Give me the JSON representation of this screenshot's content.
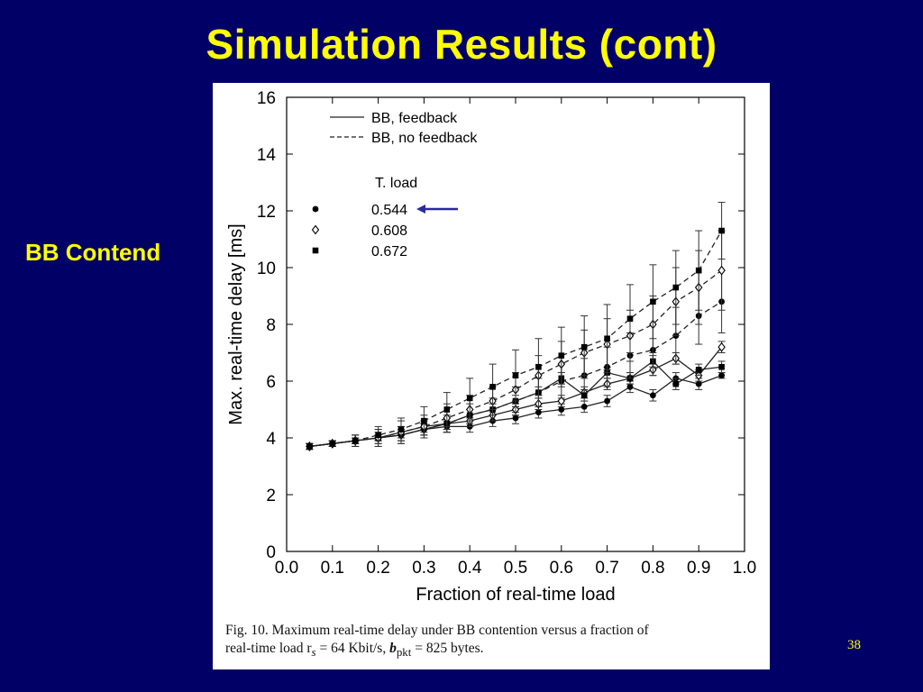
{
  "slide": {
    "title": "Simulation Results (cont)",
    "side_label": "BB Contend",
    "page_number": "38"
  },
  "caption": {
    "line1": "Fig. 10.    Maximum real-time delay under BB contention versus a fraction of",
    "line2": "real-time  load  r",
    "line2_sub": "s",
    "line2_rest": " = 64  Kbit/s, ",
    "line2_b": "b",
    "line2_b_sub": "pkt",
    "line2_end": " = 825  bytes."
  },
  "colors": {
    "background": "#000066",
    "title": "#ffff00",
    "arrow": "#2a2aa0"
  },
  "chart_data": {
    "type": "line",
    "xlabel": "Fraction of real-time load",
    "ylabel": "Max. real-time delay [ms]",
    "xlim": [
      0.0,
      1.0
    ],
    "ylim": [
      0,
      16
    ],
    "x_ticks": [
      "0.0",
      "0.1",
      "0.2",
      "0.3",
      "0.4",
      "0.5",
      "0.6",
      "0.7",
      "0.8",
      "0.9",
      "1.0"
    ],
    "y_ticks": [
      "0",
      "2",
      "4",
      "6",
      "8",
      "10",
      "12",
      "14",
      "16"
    ],
    "grid": false,
    "legend": {
      "position": "top-left",
      "styles": [
        {
          "label": "BB, feedback",
          "linestyle": "solid"
        },
        {
          "label": "BB, no feedback",
          "linestyle": "dashed"
        }
      ],
      "load_title": "T. load",
      "markers": [
        {
          "label": "0.544",
          "marker": "circle"
        },
        {
          "label": "0.608",
          "marker": "diamond"
        },
        {
          "label": "0.672",
          "marker": "square"
        }
      ],
      "highlighted": "0.544"
    },
    "series": [
      {
        "load": "0.544",
        "marker": "circle",
        "linestyle": "solid",
        "x": [
          0.05,
          0.1,
          0.15,
          0.2,
          0.25,
          0.3,
          0.35,
          0.4,
          0.45,
          0.5,
          0.55,
          0.6,
          0.65,
          0.7,
          0.75,
          0.8,
          0.85,
          0.9,
          0.95
        ],
        "y": [
          3.7,
          3.8,
          3.9,
          4.0,
          4.1,
          4.3,
          4.4,
          4.4,
          4.6,
          4.7,
          4.9,
          5.0,
          5.1,
          5.3,
          5.8,
          5.5,
          6.1,
          5.9,
          6.2
        ],
        "err": [
          0.1,
          0.1,
          0.1,
          0.1,
          0.2,
          0.2,
          0.2,
          0.2,
          0.2,
          0.2,
          0.2,
          0.2,
          0.2,
          0.2,
          0.2,
          0.2,
          0.2,
          0.2,
          0.1
        ]
      },
      {
        "load": "0.608",
        "marker": "diamond",
        "linestyle": "solid",
        "x": [
          0.05,
          0.1,
          0.15,
          0.2,
          0.25,
          0.3,
          0.35,
          0.4,
          0.45,
          0.5,
          0.55,
          0.6,
          0.65,
          0.7,
          0.75,
          0.8,
          0.85,
          0.9,
          0.95
        ],
        "y": [
          3.7,
          3.8,
          3.9,
          4.0,
          4.1,
          4.3,
          4.5,
          4.6,
          4.8,
          5.0,
          5.2,
          5.3,
          5.6,
          5.9,
          6.1,
          6.4,
          6.8,
          6.2,
          7.2
        ],
        "err": [
          0.1,
          0.1,
          0.1,
          0.1,
          0.2,
          0.2,
          0.2,
          0.2,
          0.2,
          0.2,
          0.2,
          0.2,
          0.2,
          0.2,
          0.2,
          0.2,
          0.2,
          0.2,
          0.2
        ]
      },
      {
        "load": "0.672",
        "marker": "square",
        "linestyle": "solid",
        "x": [
          0.05,
          0.1,
          0.15,
          0.2,
          0.25,
          0.3,
          0.35,
          0.4,
          0.45,
          0.5,
          0.55,
          0.6,
          0.65,
          0.7,
          0.75,
          0.8,
          0.85,
          0.9,
          0.95
        ],
        "y": [
          3.7,
          3.8,
          3.9,
          4.0,
          4.2,
          4.4,
          4.5,
          4.8,
          5.0,
          5.3,
          5.6,
          6.1,
          5.5,
          6.3,
          6.1,
          6.7,
          5.9,
          6.4,
          6.5
        ],
        "err": [
          0.1,
          0.1,
          0.1,
          0.2,
          0.2,
          0.2,
          0.2,
          0.2,
          0.2,
          0.2,
          0.2,
          0.2,
          0.2,
          0.2,
          0.2,
          0.2,
          0.2,
          0.2,
          0.2
        ]
      },
      {
        "load": "0.544",
        "marker": "circle",
        "linestyle": "dashed",
        "x": [
          0.05,
          0.1,
          0.15,
          0.2,
          0.25,
          0.3,
          0.35,
          0.4,
          0.45,
          0.5,
          0.55,
          0.6,
          0.65,
          0.7,
          0.75,
          0.8,
          0.85,
          0.9,
          0.95
        ],
        "y": [
          3.7,
          3.8,
          3.9,
          4.0,
          4.1,
          4.3,
          4.5,
          4.8,
          5.0,
          5.3,
          5.6,
          6.0,
          6.2,
          6.5,
          6.9,
          7.1,
          7.6,
          8.3,
          8.8
        ],
        "err": [
          0.1,
          0.1,
          0.2,
          0.3,
          0.3,
          0.3,
          0.3,
          0.4,
          0.4,
          0.5,
          0.5,
          0.6,
          0.6,
          0.7,
          0.8,
          0.9,
          1.0,
          1.0,
          1.1
        ]
      },
      {
        "load": "0.608",
        "marker": "diamond",
        "linestyle": "dashed",
        "x": [
          0.05,
          0.1,
          0.15,
          0.2,
          0.25,
          0.3,
          0.35,
          0.4,
          0.45,
          0.5,
          0.55,
          0.6,
          0.65,
          0.7,
          0.75,
          0.8,
          0.85,
          0.9,
          0.95
        ],
        "y": [
          3.7,
          3.8,
          3.9,
          4.0,
          4.2,
          4.4,
          4.7,
          5.0,
          5.3,
          5.7,
          6.2,
          6.6,
          7.0,
          7.3,
          7.6,
          8.0,
          8.8,
          9.3,
          9.9
        ],
        "err": [
          0.1,
          0.1,
          0.2,
          0.3,
          0.4,
          0.4,
          0.5,
          0.5,
          0.5,
          0.6,
          0.7,
          0.8,
          0.8,
          0.9,
          0.9,
          1.0,
          1.2,
          1.3,
          1.4
        ]
      },
      {
        "load": "0.672",
        "marker": "square",
        "linestyle": "dashed",
        "x": [
          0.05,
          0.1,
          0.15,
          0.2,
          0.25,
          0.3,
          0.35,
          0.4,
          0.45,
          0.5,
          0.55,
          0.6,
          0.65,
          0.7,
          0.75,
          0.8,
          0.85,
          0.9,
          0.95
        ],
        "y": [
          3.7,
          3.8,
          3.9,
          4.1,
          4.3,
          4.6,
          5.0,
          5.4,
          5.8,
          6.2,
          6.5,
          6.9,
          7.2,
          7.5,
          8.2,
          8.8,
          9.3,
          9.9,
          11.3
        ],
        "err": [
          0.1,
          0.1,
          0.2,
          0.3,
          0.4,
          0.5,
          0.6,
          0.7,
          0.8,
          0.9,
          1.0,
          1.0,
          1.1,
          1.2,
          1.2,
          1.3,
          1.3,
          1.4,
          1.0
        ]
      }
    ]
  }
}
